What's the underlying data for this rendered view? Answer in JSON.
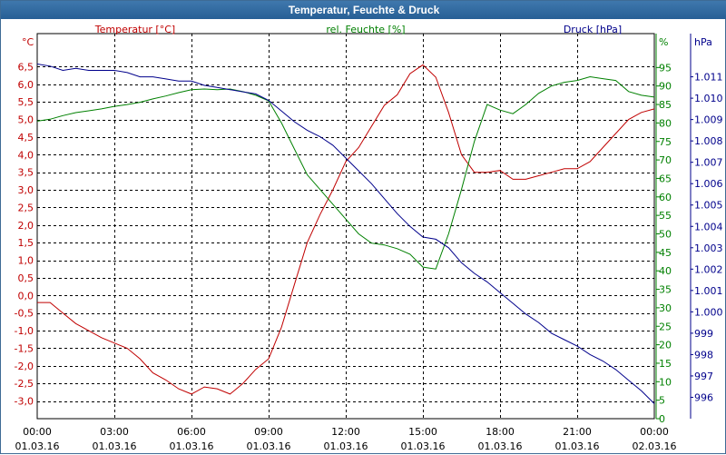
{
  "window": {
    "title": "Temperatur, Feuchte & Druck"
  },
  "colors": {
    "temperature": "#c00000",
    "humidity": "#008000",
    "pressure": "#00008b",
    "grid": "#000000"
  },
  "chart_data": {
    "type": "line",
    "title": "Temperatur, Feuchte & Druck",
    "grid": true,
    "x_axis": {
      "range": [
        "01.03.16 00:00",
        "02.03.16 00:00"
      ],
      "tick_times": [
        "00:00",
        "03:00",
        "06:00",
        "09:00",
        "12:00",
        "15:00",
        "18:00",
        "21:00",
        "00:00"
      ],
      "tick_dates": [
        "01.03.16",
        "01.03.16",
        "01.03.16",
        "01.03.16",
        "01.03.16",
        "01.03.16",
        "01.03.16",
        "01.03.16",
        "02.03.16"
      ]
    },
    "axes": {
      "temperature": {
        "label": "Temperatur [°C]",
        "unit": "°C",
        "side": "left",
        "range": [
          -3.5,
          7.0
        ],
        "ticks": [
          "6,5",
          "6,0",
          "5,5",
          "5,0",
          "4,5",
          "4,0",
          "3,5",
          "3,0",
          "2,5",
          "2,0",
          "1,5",
          "1,0",
          "0,5",
          "0,0",
          "-0,5",
          "-1,0",
          "-1,5",
          "-2,0",
          "-2,5",
          "-3,0"
        ]
      },
      "humidity": {
        "label": "rel. Feuchte [%]",
        "unit": "%",
        "side": "right",
        "range": [
          0,
          100
        ],
        "ticks": [
          "95",
          "90",
          "85",
          "80",
          "75",
          "70",
          "65",
          "60",
          "55",
          "50",
          "45",
          "40",
          "35",
          "30",
          "25",
          "20",
          "15",
          "10",
          "5",
          "0"
        ]
      },
      "pressure": {
        "label": "Druck [hPa]",
        "unit": "hPa",
        "side": "right",
        "range": [
          995.0,
          1012.3
        ],
        "ticks": [
          "1.011",
          "1.010",
          "1.009",
          "1.008",
          "1.007",
          "1.006",
          "1.005",
          "1.004",
          "1.003",
          "1.002",
          "1.001",
          "1.000",
          "999",
          "998",
          "997",
          "996"
        ]
      }
    },
    "series": [
      {
        "name": "Temperatur [°C]",
        "axis": "temperature",
        "x": [
          "01.03.16 00:00",
          "01.03.16 00:30",
          "01.03.16 01:00",
          "01.03.16 01:30",
          "01.03.16 02:00",
          "01.03.16 02:30",
          "01.03.16 03:00",
          "01.03.16 03:30",
          "01.03.16 04:00",
          "01.03.16 04:30",
          "01.03.16 05:00",
          "01.03.16 05:30",
          "01.03.16 06:00",
          "01.03.16 06:30",
          "01.03.16 07:00",
          "01.03.16 07:30",
          "01.03.16 08:00",
          "01.03.16 08:30",
          "01.03.16 09:00",
          "01.03.16 09:30",
          "01.03.16 10:00",
          "01.03.16 10:30",
          "01.03.16 11:00",
          "01.03.16 11:30",
          "01.03.16 12:00",
          "01.03.16 12:30",
          "01.03.16 13:00",
          "01.03.16 13:30",
          "01.03.16 14:00",
          "01.03.16 14:30",
          "01.03.16 15:00",
          "01.03.16 15:30",
          "01.03.16 16:00",
          "01.03.16 16:30",
          "01.03.16 17:00",
          "01.03.16 17:30",
          "01.03.16 18:00",
          "01.03.16 18:30",
          "01.03.16 19:00",
          "01.03.16 19:30",
          "01.03.16 20:00",
          "01.03.16 20:30",
          "01.03.16 21:00",
          "01.03.16 21:30",
          "01.03.16 22:00",
          "01.03.16 22:30",
          "01.03.16 23:00",
          "01.03.16 23:30",
          "02.03.16 00:00"
        ],
        "y": [
          -0.2,
          -0.2,
          -0.5,
          -0.8,
          -1.0,
          -1.2,
          -1.35,
          -1.5,
          -1.8,
          -2.2,
          -2.4,
          -2.65,
          -2.8,
          -2.6,
          -2.65,
          -2.8,
          -2.5,
          -2.1,
          -1.8,
          -0.9,
          0.3,
          1.5,
          2.3,
          3.0,
          3.8,
          4.2,
          4.8,
          5.4,
          5.7,
          6.3,
          6.55,
          6.2,
          5.2,
          4.0,
          3.5,
          3.5,
          3.55,
          3.3,
          3.3,
          3.4,
          3.5,
          3.6,
          3.6,
          3.8,
          4.2,
          4.6,
          5.0,
          5.2,
          5.3
        ]
      },
      {
        "name": "rel. Feuchte [%]",
        "axis": "humidity",
        "x": [
          "01.03.16 00:00",
          "01.03.16 00:30",
          "01.03.16 01:00",
          "01.03.16 01:30",
          "01.03.16 02:00",
          "01.03.16 02:30",
          "01.03.16 03:00",
          "01.03.16 03:30",
          "01.03.16 04:00",
          "01.03.16 04:30",
          "01.03.16 05:00",
          "01.03.16 05:30",
          "01.03.16 06:00",
          "01.03.16 06:30",
          "01.03.16 07:00",
          "01.03.16 07:30",
          "01.03.16 08:00",
          "01.03.16 08:30",
          "01.03.16 09:00",
          "01.03.16 09:30",
          "01.03.16 10:00",
          "01.03.16 10:30",
          "01.03.16 11:00",
          "01.03.16 11:30",
          "01.03.16 12:00",
          "01.03.16 12:30",
          "01.03.16 13:00",
          "01.03.16 13:30",
          "01.03.16 14:00",
          "01.03.16 14:30",
          "01.03.16 15:00",
          "01.03.16 15:30",
          "01.03.16 16:00",
          "01.03.16 16:30",
          "01.03.16 17:00",
          "01.03.16 17:30",
          "01.03.16 18:00",
          "01.03.16 18:30",
          "01.03.16 19:00",
          "01.03.16 19:30",
          "01.03.16 20:00",
          "01.03.16 20:30",
          "01.03.16 21:00",
          "01.03.16 21:30",
          "01.03.16 22:00",
          "01.03.16 22:30",
          "01.03.16 23:00",
          "01.03.16 23:30",
          "02.03.16 00:00"
        ],
        "y": [
          80.5,
          81.0,
          82.0,
          82.8,
          83.3,
          83.8,
          84.5,
          85.0,
          85.6,
          86.5,
          87.3,
          88.2,
          89.0,
          89.2,
          89.0,
          89.2,
          88.5,
          87.5,
          86.0,
          80.0,
          73.0,
          66.0,
          62.0,
          58.0,
          54.0,
          50.0,
          47.5,
          47.0,
          46.0,
          44.5,
          41.0,
          40.5,
          50.0,
          62.0,
          75.0,
          85.0,
          83.5,
          82.5,
          85.0,
          88.0,
          90.0,
          91.0,
          91.5,
          92.5,
          92.0,
          91.5,
          88.5,
          87.5,
          87.0
        ]
      },
      {
        "name": "Druck [hPa]",
        "axis": "pressure",
        "x": [
          "01.03.16 00:00",
          "01.03.16 00:30",
          "01.03.16 01:00",
          "01.03.16 01:30",
          "01.03.16 02:00",
          "01.03.16 02:30",
          "01.03.16 03:00",
          "01.03.16 03:30",
          "01.03.16 04:00",
          "01.03.16 04:30",
          "01.03.16 05:00",
          "01.03.16 05:30",
          "01.03.16 06:00",
          "01.03.16 06:30",
          "01.03.16 07:00",
          "01.03.16 07:30",
          "01.03.16 08:00",
          "01.03.16 08:30",
          "01.03.16 09:00",
          "01.03.16 09:30",
          "01.03.16 10:00",
          "01.03.16 10:30",
          "01.03.16 11:00",
          "01.03.16 11:30",
          "01.03.16 12:00",
          "01.03.16 12:30",
          "01.03.16 13:00",
          "01.03.16 13:30",
          "01.03.16 14:00",
          "01.03.16 14:30",
          "01.03.16 15:00",
          "01.03.16 15:30",
          "01.03.16 16:00",
          "01.03.16 16:30",
          "01.03.16 17:00",
          "01.03.16 17:30",
          "01.03.16 18:00",
          "01.03.16 18:30",
          "01.03.16 19:00",
          "01.03.16 19:30",
          "01.03.16 20:00",
          "01.03.16 20:30",
          "01.03.16 21:00",
          "01.03.16 21:30",
          "01.03.16 22:00",
          "01.03.16 22:30",
          "01.03.16 23:00",
          "01.03.16 23:30",
          "02.03.16 00:00"
        ],
        "y": [
          1011.6,
          1011.5,
          1011.3,
          1011.4,
          1011.3,
          1011.3,
          1011.3,
          1011.2,
          1011.0,
          1011.0,
          1010.9,
          1010.8,
          1010.8,
          1010.6,
          1010.5,
          1010.4,
          1010.3,
          1010.2,
          1009.9,
          1009.4,
          1008.9,
          1008.5,
          1008.2,
          1007.8,
          1007.2,
          1006.6,
          1006.0,
          1005.3,
          1004.6,
          1004.0,
          1003.5,
          1003.4,
          1003.0,
          1002.3,
          1001.8,
          1001.4,
          1000.9,
          1000.4,
          999.9,
          999.5,
          999.0,
          998.7,
          998.4,
          998.0,
          997.7,
          997.3,
          996.8,
          996.3,
          995.7
        ]
      }
    ]
  }
}
